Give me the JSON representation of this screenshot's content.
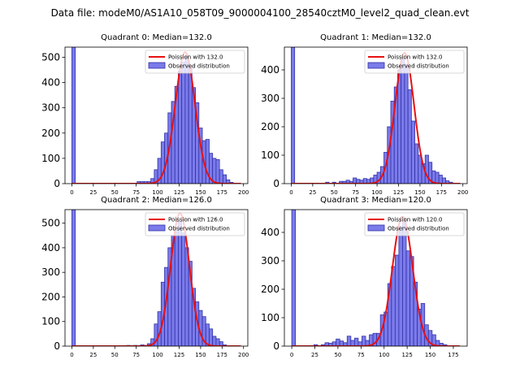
{
  "figure": {
    "suptitle": "Data file: modeM0/AS1A10_058T09_9000004100_28540cztM0_level2_quad_clean.evt"
  },
  "colors": {
    "bar_fill": "#7b7bea",
    "bar_edge": "#3030a8",
    "fit_line": "#e81010",
    "axes": "#000000"
  },
  "chart_data": [
    {
      "type": "bar",
      "title": "Quadrant 0: Median=132.0",
      "xlim": [
        -8,
        205
      ],
      "ylim": [
        0,
        540
      ],
      "xticks": [
        0,
        25,
        50,
        75,
        100,
        125,
        150,
        175,
        200
      ],
      "yticks": [
        0,
        100,
        200,
        300,
        400,
        500
      ],
      "legend": {
        "position": "top-right",
        "line_label": "Poission with 132.0",
        "bar_label": "Observed distribution"
      },
      "bin_width": 4,
      "bins": [
        {
          "x": 0,
          "y": 540
        },
        {
          "x": 76,
          "y": 8
        },
        {
          "x": 80,
          "y": 8
        },
        {
          "x": 84,
          "y": 8
        },
        {
          "x": 88,
          "y": 8
        },
        {
          "x": 92,
          "y": 20
        },
        {
          "x": 96,
          "y": 55
        },
        {
          "x": 100,
          "y": 100
        },
        {
          "x": 104,
          "y": 165
        },
        {
          "x": 108,
          "y": 200
        },
        {
          "x": 112,
          "y": 280
        },
        {
          "x": 116,
          "y": 325
        },
        {
          "x": 120,
          "y": 385
        },
        {
          "x": 124,
          "y": 445
        },
        {
          "x": 128,
          "y": 480
        },
        {
          "x": 132,
          "y": 505
        },
        {
          "x": 136,
          "y": 465
        },
        {
          "x": 140,
          "y": 380
        },
        {
          "x": 144,
          "y": 320
        },
        {
          "x": 148,
          "y": 220
        },
        {
          "x": 152,
          "y": 170
        },
        {
          "x": 156,
          "y": 175
        },
        {
          "x": 160,
          "y": 120
        },
        {
          "x": 164,
          "y": 100
        },
        {
          "x": 168,
          "y": 95
        },
        {
          "x": 172,
          "y": 55
        },
        {
          "x": 176,
          "y": 35
        },
        {
          "x": 180,
          "y": 15
        },
        {
          "x": 184,
          "y": 5
        }
      ],
      "fit": {
        "median": 132,
        "peak": 520,
        "sigma": 11.5,
        "x_range": [
          0,
          197
        ]
      }
    },
    {
      "type": "bar",
      "title": "Quadrant 1: Median=132.0",
      "xlim": [
        -8,
        205
      ],
      "ylim": [
        0,
        480
      ],
      "xticks": [
        0,
        25,
        50,
        75,
        100,
        125,
        150,
        175,
        200
      ],
      "yticks": [
        0,
        100,
        200,
        300,
        400
      ],
      "legend": {
        "position": "top-right",
        "line_label": "Poission with 132.0",
        "bar_label": "Observed distribution"
      },
      "bin_width": 4,
      "bins": [
        {
          "x": 0,
          "y": 480
        },
        {
          "x": 40,
          "y": 5
        },
        {
          "x": 48,
          "y": 5
        },
        {
          "x": 56,
          "y": 8
        },
        {
          "x": 60,
          "y": 8
        },
        {
          "x": 64,
          "y": 12
        },
        {
          "x": 68,
          "y": 8
        },
        {
          "x": 72,
          "y": 20
        },
        {
          "x": 76,
          "y": 15
        },
        {
          "x": 80,
          "y": 12
        },
        {
          "x": 84,
          "y": 18
        },
        {
          "x": 88,
          "y": 15
        },
        {
          "x": 92,
          "y": 20
        },
        {
          "x": 96,
          "y": 30
        },
        {
          "x": 100,
          "y": 40
        },
        {
          "x": 104,
          "y": 60
        },
        {
          "x": 108,
          "y": 110
        },
        {
          "x": 112,
          "y": 200
        },
        {
          "x": 116,
          "y": 290
        },
        {
          "x": 120,
          "y": 340
        },
        {
          "x": 124,
          "y": 400
        },
        {
          "x": 128,
          "y": 440
        },
        {
          "x": 132,
          "y": 420
        },
        {
          "x": 136,
          "y": 330
        },
        {
          "x": 140,
          "y": 220
        },
        {
          "x": 144,
          "y": 140
        },
        {
          "x": 148,
          "y": 100
        },
        {
          "x": 152,
          "y": 70
        },
        {
          "x": 156,
          "y": 100
        },
        {
          "x": 160,
          "y": 75
        },
        {
          "x": 164,
          "y": 45
        },
        {
          "x": 168,
          "y": 40
        },
        {
          "x": 172,
          "y": 30
        },
        {
          "x": 176,
          "y": 20
        },
        {
          "x": 180,
          "y": 10
        },
        {
          "x": 184,
          "y": 5
        }
      ],
      "fit": {
        "median": 132,
        "peak": 460,
        "sigma": 11,
        "x_range": [
          0,
          197
        ]
      }
    },
    {
      "type": "bar",
      "title": "Quadrant 2: Median=126.0",
      "xlim": [
        -8,
        205
      ],
      "ylim": [
        0,
        555
      ],
      "xticks": [
        0,
        25,
        50,
        75,
        100,
        125,
        150,
        175,
        200
      ],
      "yticks": [
        0,
        100,
        200,
        300,
        400,
        500
      ],
      "legend": {
        "position": "top-right",
        "line_label": "Poission with 126.0",
        "bar_label": "Observed distribution"
      },
      "bin_width": 4,
      "bins": [
        {
          "x": 0,
          "y": 555
        },
        {
          "x": 64,
          "y": 3
        },
        {
          "x": 72,
          "y": 3
        },
        {
          "x": 80,
          "y": 5
        },
        {
          "x": 84,
          "y": 3
        },
        {
          "x": 88,
          "y": 10
        },
        {
          "x": 92,
          "y": 30
        },
        {
          "x": 96,
          "y": 90
        },
        {
          "x": 100,
          "y": 140
        },
        {
          "x": 104,
          "y": 260
        },
        {
          "x": 108,
          "y": 320
        },
        {
          "x": 112,
          "y": 400
        },
        {
          "x": 116,
          "y": 450
        },
        {
          "x": 120,
          "y": 465
        },
        {
          "x": 124,
          "y": 505
        },
        {
          "x": 128,
          "y": 460
        },
        {
          "x": 132,
          "y": 400
        },
        {
          "x": 136,
          "y": 345
        },
        {
          "x": 140,
          "y": 235
        },
        {
          "x": 144,
          "y": 180
        },
        {
          "x": 148,
          "y": 145
        },
        {
          "x": 152,
          "y": 120
        },
        {
          "x": 156,
          "y": 90
        },
        {
          "x": 160,
          "y": 70
        },
        {
          "x": 164,
          "y": 40
        },
        {
          "x": 168,
          "y": 30
        },
        {
          "x": 172,
          "y": 18
        },
        {
          "x": 176,
          "y": 5
        }
      ],
      "fit": {
        "median": 126,
        "peak": 540,
        "sigma": 11,
        "x_range": [
          0,
          197
        ]
      }
    },
    {
      "type": "bar",
      "title": "Quadrant 3: Median=120.0",
      "xlim": [
        -8,
        190
      ],
      "ylim": [
        0,
        480
      ],
      "xticks": [
        0,
        25,
        50,
        75,
        100,
        125,
        150,
        175
      ],
      "yticks": [
        0,
        100,
        200,
        300,
        400
      ],
      "legend": {
        "position": "top-right",
        "line_label": "Poission with 120.0",
        "bar_label": "Observed distribution"
      },
      "bin_width": 4,
      "bins": [
        {
          "x": 0,
          "y": 480
        },
        {
          "x": 24,
          "y": 5
        },
        {
          "x": 32,
          "y": 5
        },
        {
          "x": 36,
          "y": 12
        },
        {
          "x": 40,
          "y": 10
        },
        {
          "x": 44,
          "y": 15
        },
        {
          "x": 48,
          "y": 25
        },
        {
          "x": 52,
          "y": 18
        },
        {
          "x": 56,
          "y": 12
        },
        {
          "x": 60,
          "y": 35
        },
        {
          "x": 64,
          "y": 20
        },
        {
          "x": 68,
          "y": 28
        },
        {
          "x": 72,
          "y": 15
        },
        {
          "x": 76,
          "y": 35
        },
        {
          "x": 80,
          "y": 20
        },
        {
          "x": 84,
          "y": 40
        },
        {
          "x": 88,
          "y": 45
        },
        {
          "x": 92,
          "y": 45
        },
        {
          "x": 96,
          "y": 110
        },
        {
          "x": 100,
          "y": 120
        },
        {
          "x": 104,
          "y": 220
        },
        {
          "x": 108,
          "y": 280
        },
        {
          "x": 112,
          "y": 320
        },
        {
          "x": 116,
          "y": 420
        },
        {
          "x": 120,
          "y": 440
        },
        {
          "x": 124,
          "y": 335
        },
        {
          "x": 128,
          "y": 315
        },
        {
          "x": 132,
          "y": 225
        },
        {
          "x": 136,
          "y": 130
        },
        {
          "x": 140,
          "y": 150
        },
        {
          "x": 144,
          "y": 75
        },
        {
          "x": 148,
          "y": 55
        },
        {
          "x": 152,
          "y": 40
        },
        {
          "x": 156,
          "y": 20
        },
        {
          "x": 160,
          "y": 10
        },
        {
          "x": 164,
          "y": 5
        }
      ],
      "fit": {
        "median": 120,
        "peak": 455,
        "sigma": 11,
        "x_range": [
          0,
          182
        ]
      }
    }
  ]
}
